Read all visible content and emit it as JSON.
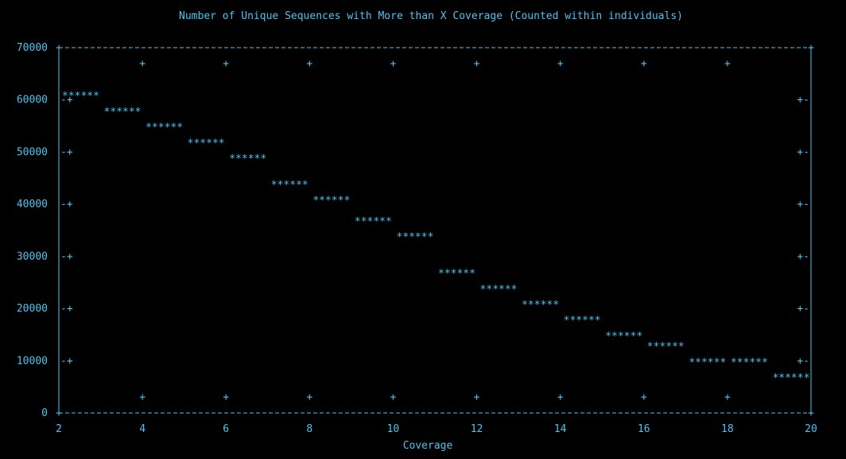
{
  "colors": {
    "background": "#000000",
    "foreground": "#4ec3f0"
  },
  "chart_data": {
    "type": "line",
    "render_style": "ascii-gnuplot",
    "title": "Number of Unique Sequences with More than X Coverage (Counted within individuals)",
    "xlabel": "Coverage",
    "ylabel": "",
    "xlim": [
      2,
      20
    ],
    "ylim": [
      0,
      70000
    ],
    "x_ticks": [
      "2",
      "4",
      "6",
      "8",
      "10",
      "12",
      "14",
      "16",
      "18",
      "20"
    ],
    "y_ticks": [
      "0",
      "10000",
      "20000",
      "30000",
      "40000",
      "50000",
      "60000",
      "70000"
    ],
    "grid": false,
    "legend": "none",
    "x": [
      2,
      3,
      4,
      5,
      6,
      7,
      8,
      9,
      10,
      11,
      12,
      13,
      14,
      15,
      16,
      17,
      18,
      19
    ],
    "values": [
      61000,
      58000,
      55000,
      52000,
      49000,
      44000,
      41000,
      37000,
      34000,
      27000,
      24000,
      21000,
      18000,
      15000,
      13000,
      10000,
      10000,
      7000
    ]
  }
}
